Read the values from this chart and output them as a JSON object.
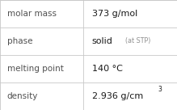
{
  "rows": [
    {
      "label": "molar mass",
      "value": "373 g/mol",
      "sup": null,
      "extra": null
    },
    {
      "label": "phase",
      "value": "solid",
      "sup": null,
      "extra": "(at STP)"
    },
    {
      "label": "melting point",
      "value": "140 °C",
      "sup": null,
      "extra": null
    },
    {
      "label": "density",
      "value": "2.936 g/cm",
      "sup": "3",
      "extra": null
    }
  ],
  "col_split": 0.47,
  "bg_color": "#ffffff",
  "border_color": "#c8c8c8",
  "label_color": "#505050",
  "value_color": "#1a1a1a",
  "extra_color": "#909090",
  "label_fontsize": 7.5,
  "value_fontsize": 8.0,
  "extra_fontsize": 5.8,
  "sup_fontsize": 5.5
}
